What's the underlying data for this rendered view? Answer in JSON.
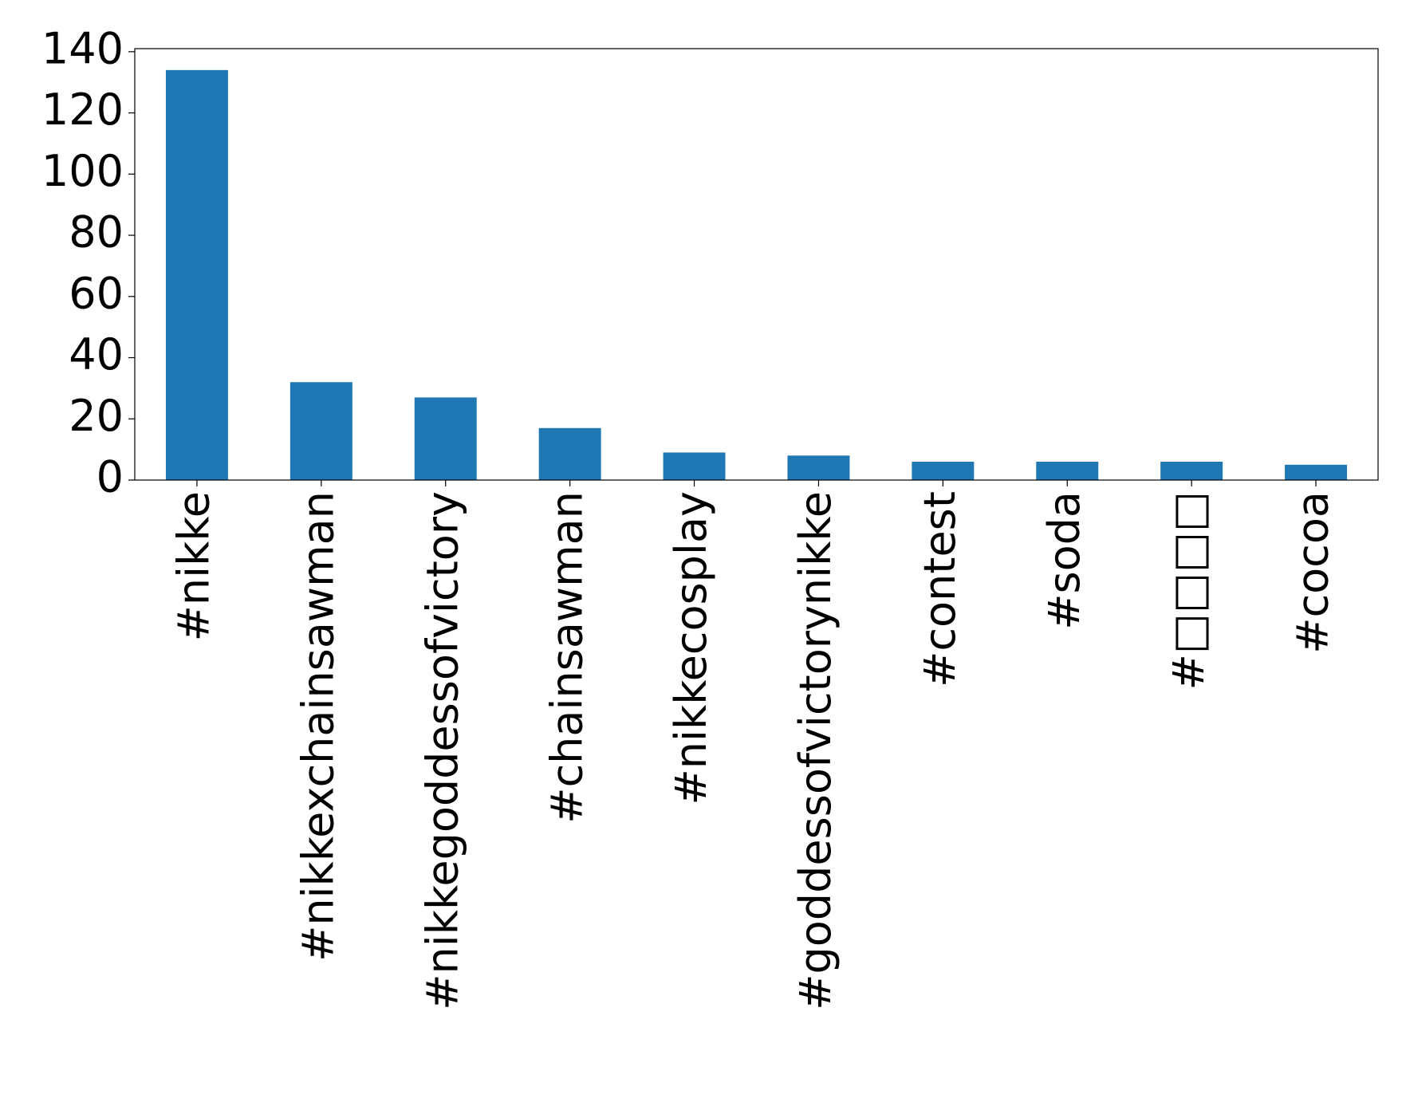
{
  "chart_data": {
    "type": "bar",
    "categories": [
      "#nikke",
      "#nikkexchainsawman",
      "#nikkegoddessofvictory",
      "#chainsawman",
      "#nikkecosplay",
      "#goddessofvictorynikke",
      "#contest",
      "#soda",
      "#□□□□",
      "#cocoa"
    ],
    "values": [
      134,
      32,
      27,
      17,
      9,
      8,
      6,
      6,
      6,
      5
    ],
    "color": "#1f77b4",
    "ylim": [
      0,
      141
    ],
    "yticks": [
      0,
      20,
      40,
      60,
      80,
      100,
      120,
      140
    ],
    "grid": false
  }
}
